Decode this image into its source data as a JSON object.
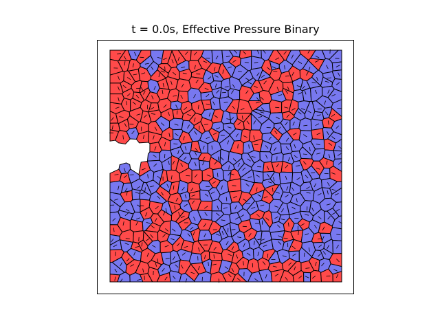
{
  "title": "t = 0.0s, Effective Pressure Binary",
  "colors": {
    "high": "#ff4a4a",
    "low": "#7878f0",
    "edge": "#000000"
  }
}
